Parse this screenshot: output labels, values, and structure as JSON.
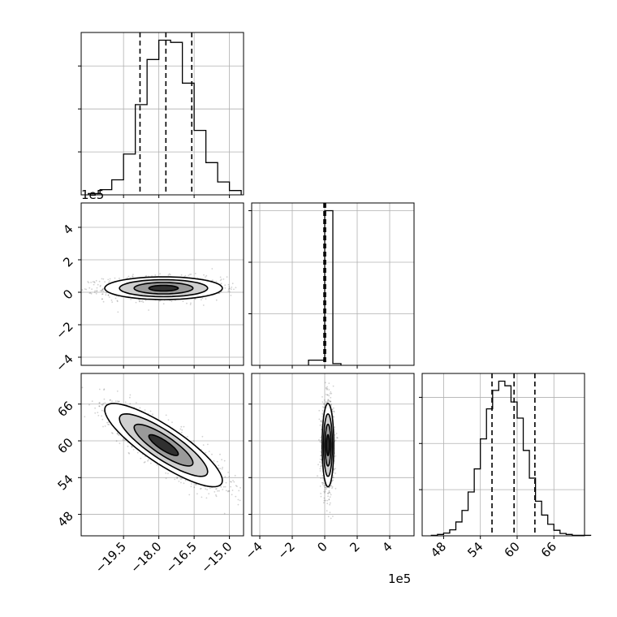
{
  "chart_data": {
    "type": "corner",
    "multiplier_label": "1e5",
    "grid": true,
    "histograms": [
      {
        "axis": "x",
        "bins": [
          -21.0,
          -20.5,
          -20.0,
          -19.5,
          -19.0,
          -18.5,
          -18.0,
          -17.5,
          -17.0,
          -16.5,
          -16.0,
          -15.5,
          -15.0,
          -14.5
        ],
        "counts": [
          0.03,
          0.12,
          0.35,
          0.95,
          2.1,
          3.15,
          3.6,
          3.55,
          2.6,
          1.5,
          0.75,
          0.3,
          0.1
        ],
        "quantiles": [
          -18.8,
          -17.7,
          -16.6
        ],
        "xlim": [
          -21.3,
          -14.4
        ]
      },
      {
        "axis": "y",
        "bins": [
          -1.0,
          0.0,
          0.5,
          1.0
        ],
        "counts": [
          0.15,
          4.5,
          0.05
        ],
        "quantiles": [
          -0.05,
          0.0,
          0.05
        ],
        "xlim": [
          -4.5,
          5.5
        ]
      },
      {
        "axis": "z",
        "bins": [
          46,
          47,
          48,
          49,
          50,
          51,
          52,
          53,
          54,
          55,
          56,
          57,
          58,
          59,
          60,
          61,
          62,
          63,
          64,
          65,
          66,
          67,
          68,
          69,
          70,
          71,
          72
        ],
        "counts": [
          0.01,
          0.03,
          0.06,
          0.13,
          0.3,
          0.55,
          0.95,
          1.45,
          2.1,
          2.75,
          3.15,
          3.35,
          3.25,
          2.9,
          2.55,
          1.85,
          1.25,
          0.75,
          0.45,
          0.25,
          0.12,
          0.05,
          0.03,
          0.01,
          0.01,
          0.01
        ],
        "quantiles": [
          55.9,
          59.5,
          62.9
        ],
        "xlim": [
          44.5,
          71.0
        ]
      }
    ],
    "scatter_panels": [
      {
        "x_axis": "x",
        "y_axis": "y",
        "x_center": -17.8,
        "y_center": 0.25,
        "x_spread": 1.25,
        "y_spread": 0.35,
        "rho": 0.0,
        "density_x": [
          -19.0,
          -16.4
        ],
        "density_y": [
          0.05,
          0.6
        ]
      },
      {
        "x_axis": "x",
        "y_axis": "z",
        "x_center": -17.8,
        "y_center": 59.3,
        "x_spread": 1.25,
        "y_spread": 3.4,
        "rho": -0.85,
        "density_x": [
          -19.0,
          -16.4
        ],
        "density_y": [
          53.5,
          65.0
        ]
      },
      {
        "x_axis": "y",
        "y_axis": "z",
        "x_center": 0.2,
        "y_center": 59.3,
        "x_spread": 0.18,
        "y_spread": 3.4,
        "rho": 0.0,
        "density_x": [
          -0.3,
          0.6
        ],
        "density_y": [
          53.5,
          65.0
        ]
      }
    ],
    "axes": {
      "x": {
        "ticks": [
          -19.5,
          -18.0,
          -16.5,
          -15.0
        ],
        "tick_labels": [
          "−19.5",
          "−18.0",
          "−16.5",
          "−15.0"
        ],
        "range": [
          -21.3,
          -14.4
        ]
      },
      "y": {
        "ticks": [
          -4,
          -2,
          0,
          2,
          4
        ],
        "tick_labels": [
          "−4",
          "−2",
          "0",
          "2",
          "4"
        ],
        "range": [
          -4.5,
          5.5
        ]
      },
      "z": {
        "ticks": [
          48,
          54,
          60,
          66
        ],
        "tick_labels": [
          "48",
          "54",
          "60",
          "66"
        ],
        "range": [
          44.5,
          71.0
        ]
      }
    }
  }
}
